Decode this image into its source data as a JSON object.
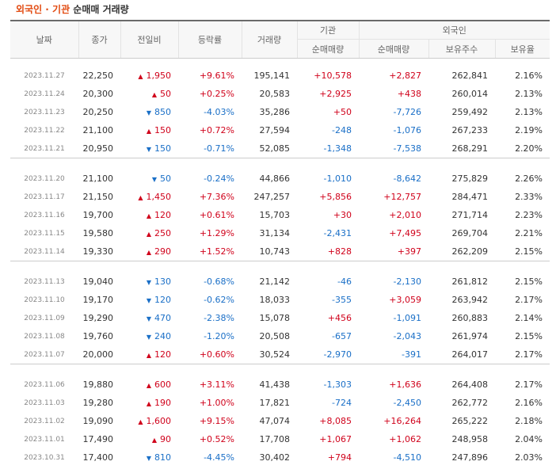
{
  "title": {
    "accent": "외국인 · 기관",
    "rest": " 순매매 거래량"
  },
  "colors": {
    "up": "#d0021b",
    "down": "#1a6fc7",
    "accent": "#e2490f"
  },
  "headers": {
    "date": "날짜",
    "close": "종가",
    "change": "전일비",
    "rate": "등락률",
    "volume": "거래량",
    "institution": "기관",
    "foreign": "외국인",
    "inst_net": "순매매량",
    "foreign_net": "순매매량",
    "foreign_shares": "보유주수",
    "foreign_ratio": "보유율"
  },
  "groups": [
    [
      {
        "date": "2023.11.27",
        "close": "22,250",
        "dir": "up",
        "change": "1,950",
        "rate": "+9.61%",
        "volume": "195,141",
        "inst": "+10,578",
        "foreign": "+2,827",
        "shares": "262,841",
        "ratio": "2.16%"
      },
      {
        "date": "2023.11.24",
        "close": "20,300",
        "dir": "up",
        "change": "50",
        "rate": "+0.25%",
        "volume": "20,583",
        "inst": "+2,925",
        "foreign": "+438",
        "shares": "260,014",
        "ratio": "2.13%"
      },
      {
        "date": "2023.11.23",
        "close": "20,250",
        "dir": "down",
        "change": "850",
        "rate": "-4.03%",
        "volume": "35,286",
        "inst": "+50",
        "foreign": "-7,726",
        "shares": "259,492",
        "ratio": "2.13%"
      },
      {
        "date": "2023.11.22",
        "close": "21,100",
        "dir": "up",
        "change": "150",
        "rate": "+0.72%",
        "volume": "27,594",
        "inst": "-248",
        "foreign": "-1,076",
        "shares": "267,233",
        "ratio": "2.19%"
      },
      {
        "date": "2023.11.21",
        "close": "20,950",
        "dir": "down",
        "change": "150",
        "rate": "-0.71%",
        "volume": "52,085",
        "inst": "-1,348",
        "foreign": "-7,538",
        "shares": "268,291",
        "ratio": "2.20%"
      }
    ],
    [
      {
        "date": "2023.11.20",
        "close": "21,100",
        "dir": "down",
        "change": "50",
        "rate": "-0.24%",
        "volume": "44,866",
        "inst": "-1,010",
        "foreign": "-8,642",
        "shares": "275,829",
        "ratio": "2.26%"
      },
      {
        "date": "2023.11.17",
        "close": "21,150",
        "dir": "up",
        "change": "1,450",
        "rate": "+7.36%",
        "volume": "247,257",
        "inst": "+5,856",
        "foreign": "+12,757",
        "shares": "284,471",
        "ratio": "2.33%"
      },
      {
        "date": "2023.11.16",
        "close": "19,700",
        "dir": "up",
        "change": "120",
        "rate": "+0.61%",
        "volume": "15,703",
        "inst": "+30",
        "foreign": "+2,010",
        "shares": "271,714",
        "ratio": "2.23%"
      },
      {
        "date": "2023.11.15",
        "close": "19,580",
        "dir": "up",
        "change": "250",
        "rate": "+1.29%",
        "volume": "31,134",
        "inst": "-2,431",
        "foreign": "+7,495",
        "shares": "269,704",
        "ratio": "2.21%"
      },
      {
        "date": "2023.11.14",
        "close": "19,330",
        "dir": "up",
        "change": "290",
        "rate": "+1.52%",
        "volume": "10,743",
        "inst": "+828",
        "foreign": "+397",
        "shares": "262,209",
        "ratio": "2.15%"
      }
    ],
    [
      {
        "date": "2023.11.13",
        "close": "19,040",
        "dir": "down",
        "change": "130",
        "rate": "-0.68%",
        "volume": "21,142",
        "inst": "-46",
        "foreign": "-2,130",
        "shares": "261,812",
        "ratio": "2.15%"
      },
      {
        "date": "2023.11.10",
        "close": "19,170",
        "dir": "down",
        "change": "120",
        "rate": "-0.62%",
        "volume": "18,033",
        "inst": "-355",
        "foreign": "+3,059",
        "shares": "263,942",
        "ratio": "2.17%"
      },
      {
        "date": "2023.11.09",
        "close": "19,290",
        "dir": "down",
        "change": "470",
        "rate": "-2.38%",
        "volume": "15,078",
        "inst": "+456",
        "foreign": "-1,091",
        "shares": "260,883",
        "ratio": "2.14%"
      },
      {
        "date": "2023.11.08",
        "close": "19,760",
        "dir": "down",
        "change": "240",
        "rate": "-1.20%",
        "volume": "20,508",
        "inst": "-657",
        "foreign": "-2,043",
        "shares": "261,974",
        "ratio": "2.15%"
      },
      {
        "date": "2023.11.07",
        "close": "20,000",
        "dir": "up",
        "change": "120",
        "rate": "+0.60%",
        "volume": "30,524",
        "inst": "-2,970",
        "foreign": "-391",
        "shares": "264,017",
        "ratio": "2.17%"
      }
    ],
    [
      {
        "date": "2023.11.06",
        "close": "19,880",
        "dir": "up",
        "change": "600",
        "rate": "+3.11%",
        "volume": "41,438",
        "inst": "-1,303",
        "foreign": "+1,636",
        "shares": "264,408",
        "ratio": "2.17%"
      },
      {
        "date": "2023.11.03",
        "close": "19,280",
        "dir": "up",
        "change": "190",
        "rate": "+1.00%",
        "volume": "17,821",
        "inst": "-724",
        "foreign": "-2,450",
        "shares": "262,772",
        "ratio": "2.16%"
      },
      {
        "date": "2023.11.02",
        "close": "19,090",
        "dir": "up",
        "change": "1,600",
        "rate": "+9.15%",
        "volume": "47,074",
        "inst": "+8,085",
        "foreign": "+16,264",
        "shares": "265,222",
        "ratio": "2.18%"
      },
      {
        "date": "2023.11.01",
        "close": "17,490",
        "dir": "up",
        "change": "90",
        "rate": "+0.52%",
        "volume": "17,708",
        "inst": "+1,067",
        "foreign": "+1,062",
        "shares": "248,958",
        "ratio": "2.04%"
      },
      {
        "date": "2023.10.31",
        "close": "17,400",
        "dir": "down",
        "change": "810",
        "rate": "-4.45%",
        "volume": "30,402",
        "inst": "+794",
        "foreign": "-4,510",
        "shares": "247,896",
        "ratio": "2.03%"
      }
    ]
  ],
  "arrows": {
    "up": "▲",
    "down": "▼"
  }
}
